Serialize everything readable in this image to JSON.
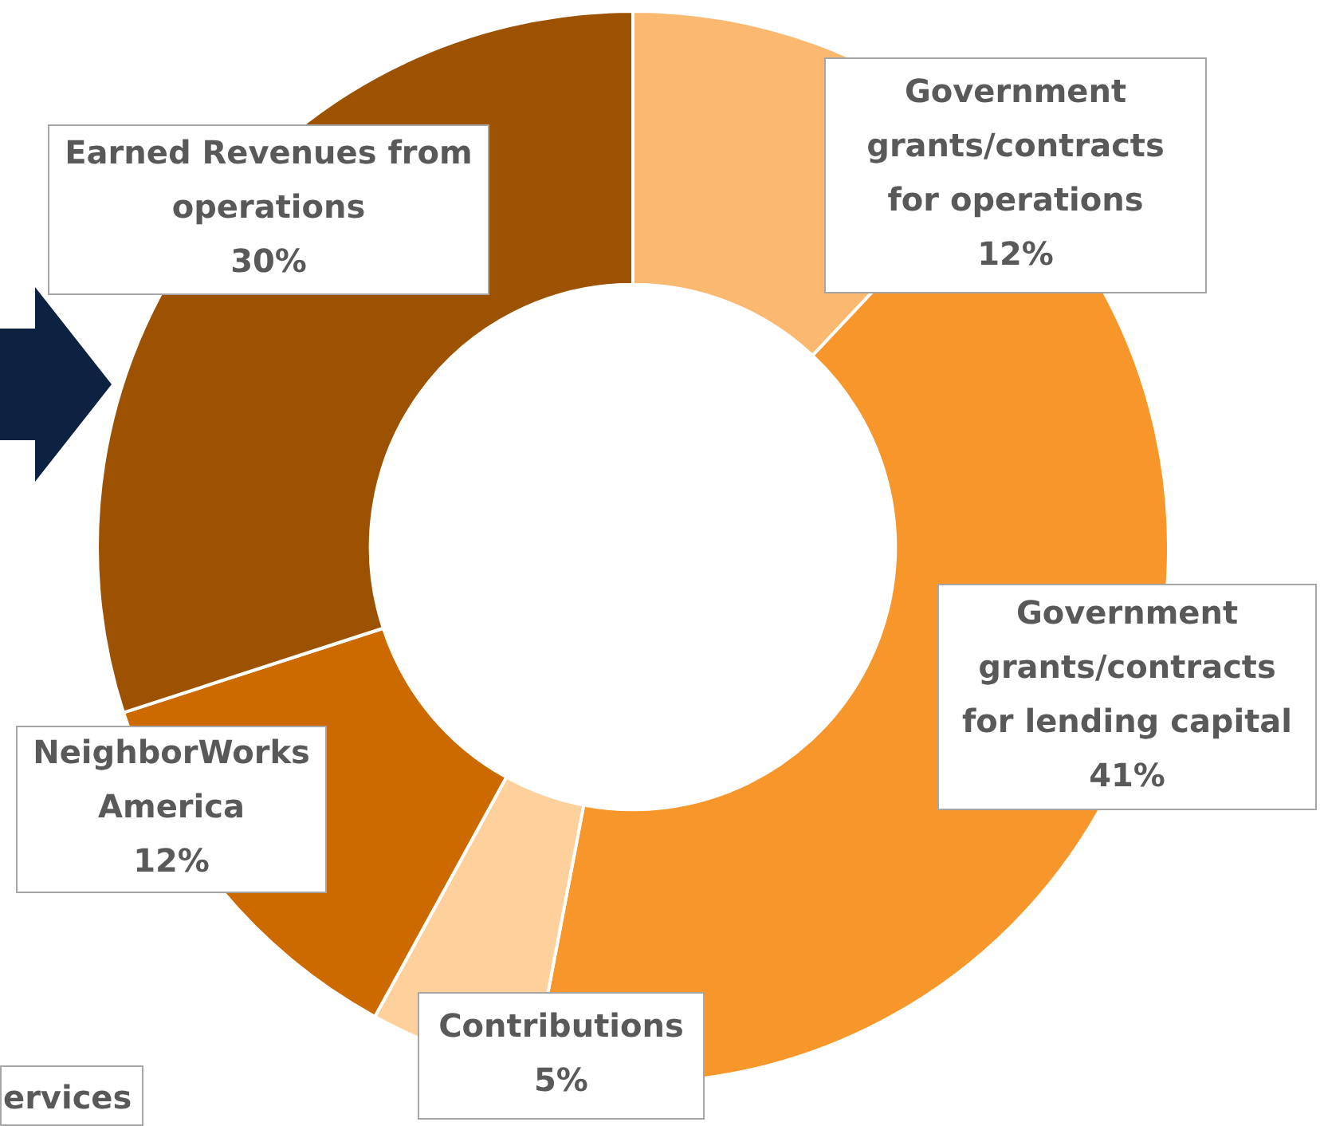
{
  "chart_data": {
    "type": "donut",
    "categories": [
      "Government grants/contracts for operations",
      "Government grants/contracts for lending capital",
      "Contributions",
      "NeighborWorks America",
      "Earned Revenues from operations"
    ],
    "values": [
      12,
      41,
      5,
      12,
      30
    ],
    "colors": [
      "#fbb870",
      "#f7962a",
      "#fdd09c",
      "#cc6a00",
      "#9c5200"
    ],
    "value_labels": [
      "12%",
      "41%",
      "5%",
      "12%",
      "30%"
    ],
    "legend": false,
    "annotations": [
      "ervices"
    ]
  }
}
